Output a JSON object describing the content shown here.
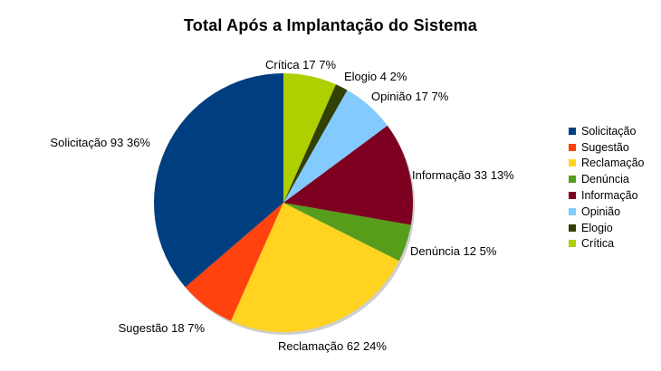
{
  "chart_data": {
    "type": "pie",
    "title": "Total Após a Implantação do Sistema",
    "legend_position": "right",
    "series": [
      {
        "name": "Solicitação",
        "value": 93,
        "percent": "36%",
        "color": "#003f7f",
        "label": "Solicitação 93 36%"
      },
      {
        "name": "Sugestão",
        "value": 18,
        "percent": "7%",
        "color": "#ff420e",
        "label": "Sugestão 18 7%"
      },
      {
        "name": "Reclamação",
        "value": 62,
        "percent": "24%",
        "color": "#ffd320",
        "label": "Reclamação 62 24%"
      },
      {
        "name": "Denúncia",
        "value": 12,
        "percent": "5%",
        "color": "#579d1c",
        "label": "Denúncia 12 5%"
      },
      {
        "name": "Informação",
        "value": 33,
        "percent": "13%",
        "color": "#7e0021",
        "label": "Informação 33 13%"
      },
      {
        "name": "Opinião",
        "value": 17,
        "percent": "7%",
        "color": "#83caff",
        "label": "Opinião 17 7%"
      },
      {
        "name": "Elogio",
        "value": 4,
        "percent": "2%",
        "color": "#314004",
        "label": "Elogio 4 2%"
      },
      {
        "name": "Crítica",
        "value": 17,
        "percent": "7%",
        "color": "#aecf00",
        "label": "Crítica 17 7%"
      }
    ]
  }
}
